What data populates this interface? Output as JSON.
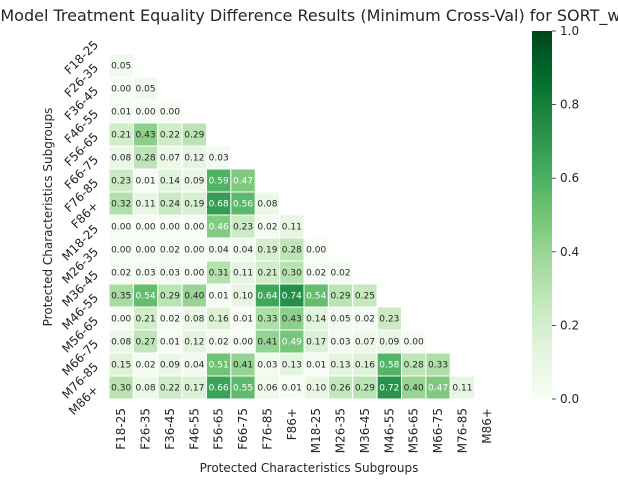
{
  "chart_data": {
    "type": "heatmap",
    "title": "Model Treatment Equality Difference Results (Minimum Cross-Val) for SORT_wC",
    "xlabel": "Protected Characteristics Subgroups",
    "ylabel": "Protected Characteristics Subgroups",
    "categories": [
      "F18-25",
      "F26-35",
      "F36-45",
      "F46-55",
      "F56-65",
      "F66-75",
      "F76-85",
      "F86+",
      "M18-25",
      "M26-35",
      "M36-45",
      "M46-55",
      "M56-65",
      "M66-75",
      "M76-85",
      "M86+"
    ],
    "mask": "upper-triangle-including-diagonal",
    "colormap": {
      "name": "Greens",
      "low": "#f7fcf5",
      "mid": "#74c476",
      "high": "#00441b"
    },
    "clim": [
      0.0,
      1.0
    ],
    "colorbar_ticks": [
      "0.0",
      "0.2",
      "0.4",
      "0.6",
      "0.8",
      "1.0"
    ],
    "rows": [
      [],
      [
        0.05
      ],
      [
        0.0,
        0.05
      ],
      [
        0.01,
        0.0,
        0.0
      ],
      [
        0.21,
        0.43,
        0.22,
        0.29
      ],
      [
        0.08,
        0.28,
        0.07,
        0.12,
        0.03
      ],
      [
        0.23,
        0.01,
        0.14,
        0.09,
        0.59,
        0.47
      ],
      [
        0.32,
        0.11,
        0.24,
        0.19,
        0.68,
        0.56,
        0.08
      ],
      [
        0.0,
        0.0,
        0.0,
        0.0,
        0.46,
        0.23,
        0.02,
        0.11
      ],
      [
        0.0,
        0.0,
        0.02,
        0.0,
        0.04,
        0.04,
        0.19,
        0.28,
        0.0
      ],
      [
        0.02,
        0.03,
        0.03,
        0.0,
        0.31,
        0.11,
        0.21,
        0.3,
        0.02,
        0.02
      ],
      [
        0.35,
        0.54,
        0.29,
        0.4,
        0.01,
        0.1,
        0.64,
        0.74,
        0.54,
        0.29,
        0.25
      ],
      [
        0.0,
        0.21,
        0.02,
        0.08,
        0.16,
        0.01,
        0.33,
        0.43,
        0.14,
        0.05,
        0.02,
        0.23
      ],
      [
        0.08,
        0.27,
        0.01,
        0.12,
        0.02,
        0.0,
        0.41,
        0.49,
        0.17,
        0.03,
        0.07,
        0.09,
        0.0
      ],
      [
        0.15,
        0.02,
        0.09,
        0.04,
        0.51,
        0.41,
        0.03,
        0.13,
        0.01,
        0.13,
        0.16,
        0.58,
        0.28,
        0.33
      ],
      [
        0.3,
        0.08,
        0.22,
        0.17,
        0.66,
        0.55,
        0.06,
        0.01,
        0.1,
        0.26,
        0.29,
        0.72,
        0.4,
        0.47,
        0.11
      ]
    ]
  }
}
